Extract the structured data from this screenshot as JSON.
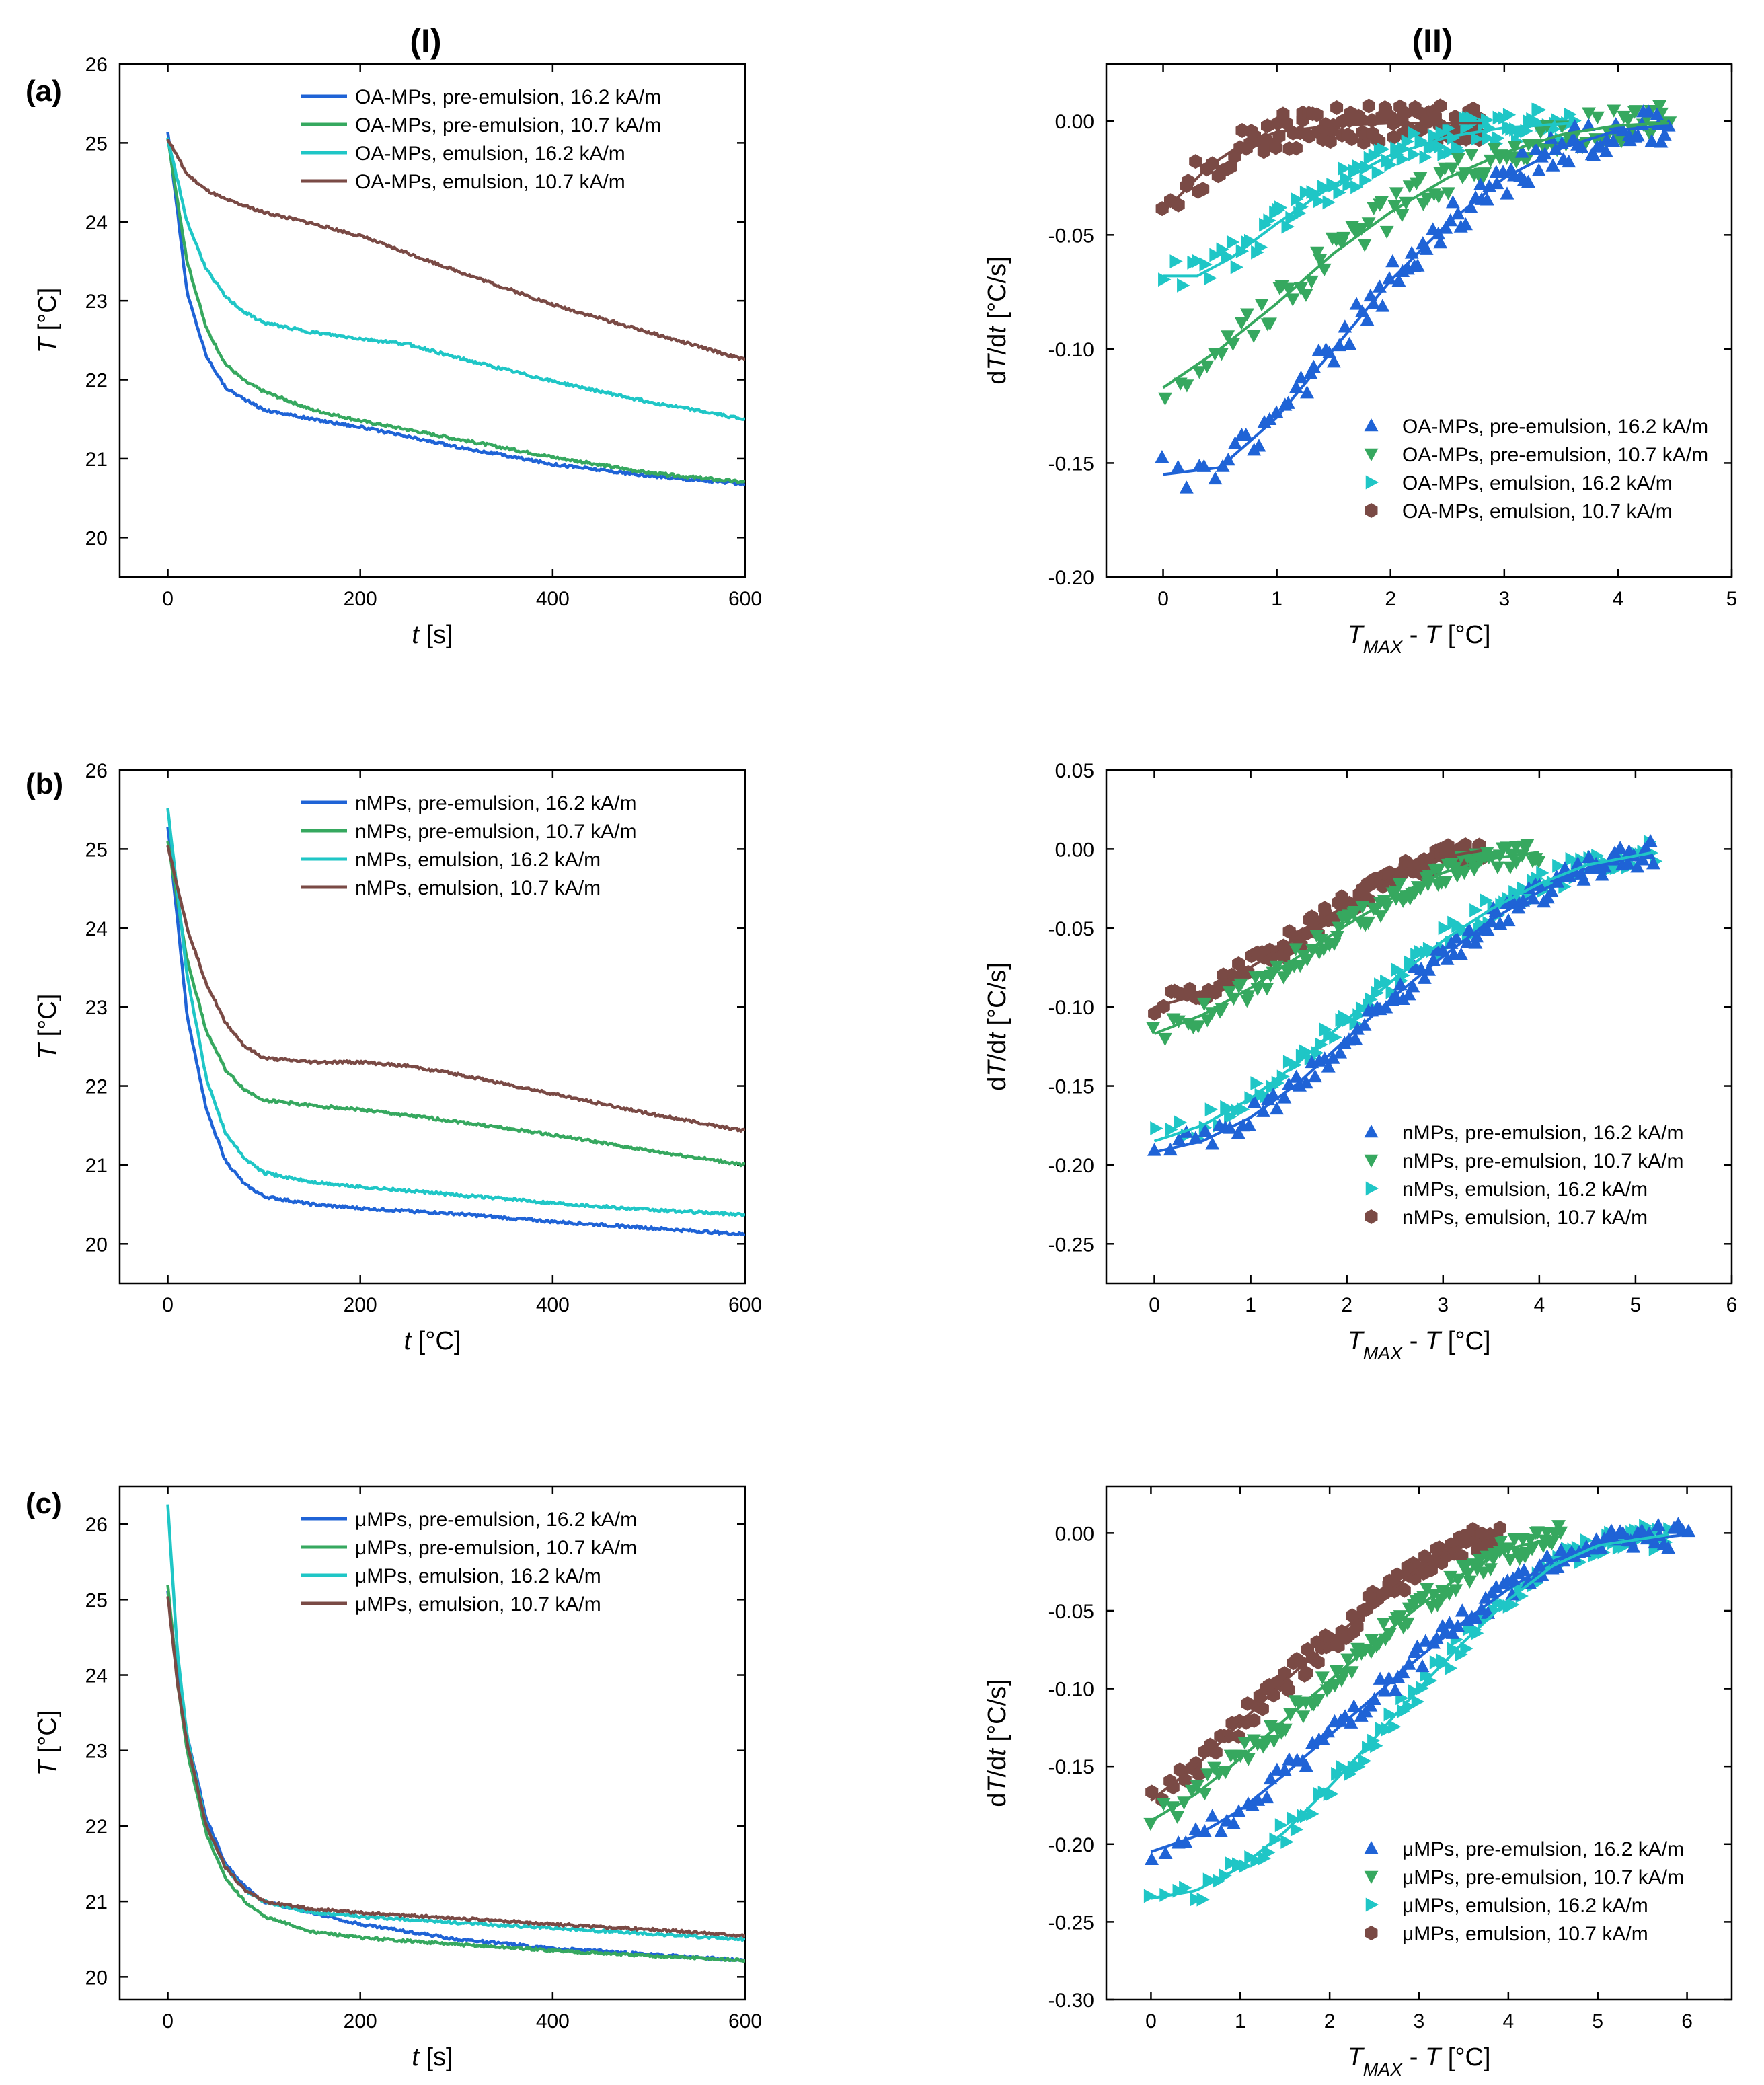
{
  "figure": {
    "column_labels": [
      "(I)",
      "(II)"
    ],
    "row_labels": [
      "(a)",
      "(b)",
      "(c)"
    ],
    "colors": {
      "blue": "#1f63d6",
      "green": "#36a85f",
      "cyan": "#1fc6c6",
      "brown": "#7a4a45"
    },
    "symbols": {
      "blue": "triangle-up",
      "green": "triangle-down",
      "cyan": "triangle-right",
      "brown": "hexagon"
    }
  },
  "chart_data": [
    {
      "id": "a1",
      "type": "line",
      "xlabel": "t [s]",
      "ylabel": "T [°C]",
      "xlim": [
        -50,
        600
      ],
      "ylim": [
        19.5,
        26
      ],
      "xticks": [
        0,
        200,
        400,
        600
      ],
      "yticks": [
        20,
        21,
        22,
        23,
        24,
        25,
        26
      ],
      "legend_position": "top-right",
      "series": [
        {
          "name": "OA-MPs, pre-emulsion, 16.2 kA/m",
          "color": "blue",
          "x": [
            0,
            20,
            40,
            60,
            80,
            100,
            150,
            200,
            300,
            400,
            500,
            600
          ],
          "y": [
            25.15,
            23.1,
            22.3,
            21.9,
            21.75,
            21.62,
            21.5,
            21.4,
            21.15,
            20.93,
            20.78,
            20.68
          ]
        },
        {
          "name": "OA-MPs, pre-emulsion, 10.7 kA/m",
          "color": "green",
          "x": [
            0,
            20,
            40,
            60,
            80,
            100,
            150,
            200,
            300,
            400,
            500,
            600
          ],
          "y": [
            25.05,
            23.5,
            22.65,
            22.2,
            21.98,
            21.85,
            21.62,
            21.48,
            21.25,
            21.02,
            20.82,
            20.7
          ]
        },
        {
          "name": "OA-MPs, emulsion, 16.2 kA/m",
          "color": "cyan",
          "x": [
            0,
            20,
            40,
            60,
            80,
            100,
            150,
            200,
            250,
            300,
            400,
            500,
            600
          ],
          "y": [
            25.05,
            24.0,
            23.4,
            23.05,
            22.85,
            22.72,
            22.6,
            22.52,
            22.45,
            22.28,
            21.98,
            21.72,
            21.5
          ]
        },
        {
          "name": "OA-MPs, emulsion, 10.7 kA/m",
          "color": "brown",
          "x": [
            0,
            20,
            40,
            60,
            80,
            100,
            150,
            200,
            300,
            400,
            500,
            600
          ],
          "y": [
            25.05,
            24.6,
            24.4,
            24.28,
            24.2,
            24.12,
            23.98,
            23.82,
            23.38,
            22.95,
            22.6,
            22.25
          ]
        }
      ]
    },
    {
      "id": "a2",
      "type": "scatter",
      "xlabel": "T_MAX - T [°C]",
      "ylabel": "dT/dt [°C/s]",
      "xlim": [
        -0.5,
        5
      ],
      "ylim": [
        -0.2,
        0.025
      ],
      "xticks": [
        0,
        1,
        2,
        3,
        4,
        5
      ],
      "yticks": [
        0.0,
        -0.05,
        -0.1,
        -0.15,
        -0.2
      ],
      "legend_position": "bottom-right",
      "series": [
        {
          "name": "OA-MPs, pre-emulsion, 16.2 kA/m",
          "color": "blue",
          "marker": "triangle-up",
          "fit_x": [
            0,
            0.5,
            1.0,
            1.5,
            2.0,
            2.5,
            3.0,
            3.5,
            4.0,
            4.45
          ],
          "fit_y": [
            -0.155,
            -0.152,
            -0.13,
            -0.1,
            -0.07,
            -0.045,
            -0.025,
            -0.012,
            -0.004,
            -0.002
          ],
          "scatter_range": [
            0,
            4.45
          ],
          "noise": 0.008
        },
        {
          "name": "OA-MPs, pre-emulsion, 10.7 kA/m",
          "color": "green",
          "marker": "triangle-down",
          "fit_x": [
            0,
            0.5,
            1.0,
            1.5,
            2.0,
            2.5,
            3.0,
            3.5,
            4.0,
            4.45
          ],
          "fit_y": [
            -0.117,
            -0.1,
            -0.08,
            -0.058,
            -0.04,
            -0.025,
            -0.014,
            -0.006,
            -0.002,
            -0.001
          ],
          "scatter_range": [
            0,
            4.45
          ],
          "noise": 0.008
        },
        {
          "name": "OA-MPs, emulsion, 16.2 kA/m",
          "color": "cyan",
          "marker": "triangle-right",
          "fit_x": [
            0,
            0.3,
            0.6,
            1.0,
            1.5,
            2.0,
            2.5,
            3.0,
            3.6
          ],
          "fit_y": [
            -0.068,
            -0.068,
            -0.06,
            -0.045,
            -0.028,
            -0.015,
            -0.007,
            -0.003,
            -0.001
          ],
          "scatter_range": [
            0,
            3.6
          ],
          "noise": 0.007
        },
        {
          "name": "OA-MPs, emulsion, 10.7 kA/m",
          "color": "brown",
          "marker": "hexagon",
          "fit_x": [
            0,
            0.2,
            0.4,
            0.7,
            1.0,
            1.5,
            2.0,
            2.8
          ],
          "fit_y": [
            -0.04,
            -0.03,
            -0.02,
            -0.01,
            -0.005,
            -0.002,
            -0.001,
            -0.001
          ],
          "scatter_range": [
            0,
            2.8
          ],
          "noise": 0.008
        }
      ]
    },
    {
      "id": "b1",
      "type": "line",
      "xlabel": "t [°C]",
      "ylabel": "T [°C]",
      "xlim": [
        -50,
        600
      ],
      "ylim": [
        19.5,
        26
      ],
      "xticks": [
        0,
        200,
        400,
        600
      ],
      "yticks": [
        20,
        21,
        22,
        23,
        24,
        25,
        26
      ],
      "legend_position": "top-right",
      "series": [
        {
          "name": "nMPs, pre-emulsion, 16.2 kA/m",
          "color": "blue",
          "x": [
            0,
            20,
            40,
            60,
            80,
            100,
            150,
            200,
            300,
            400,
            500,
            600
          ],
          "y": [
            25.3,
            22.9,
            21.7,
            21.05,
            20.75,
            20.6,
            20.5,
            20.45,
            20.38,
            20.28,
            20.2,
            20.12
          ]
        },
        {
          "name": "nMPs, pre-emulsion, 10.7 kA/m",
          "color": "green",
          "x": [
            0,
            20,
            40,
            60,
            80,
            100,
            150,
            200,
            300,
            400,
            500,
            600
          ],
          "y": [
            25.1,
            23.6,
            22.7,
            22.2,
            21.95,
            21.82,
            21.75,
            21.7,
            21.55,
            21.38,
            21.18,
            21.0
          ]
        },
        {
          "name": "nMPs, emulsion, 16.2 kA/m",
          "color": "cyan",
          "x": [
            0,
            20,
            40,
            60,
            80,
            100,
            150,
            200,
            300,
            400,
            500,
            600
          ],
          "y": [
            25.5,
            23.4,
            22.1,
            21.4,
            21.08,
            20.9,
            20.78,
            20.72,
            20.62,
            20.52,
            20.43,
            20.37
          ]
        },
        {
          "name": "nMPs, emulsion, 10.7 kA/m",
          "color": "brown",
          "x": [
            0,
            20,
            40,
            60,
            80,
            100,
            150,
            200,
            250,
            300,
            400,
            500,
            600
          ],
          "y": [
            25.05,
            24.0,
            23.3,
            22.8,
            22.5,
            22.35,
            22.3,
            22.3,
            22.25,
            22.15,
            21.9,
            21.65,
            21.43
          ]
        }
      ]
    },
    {
      "id": "b2",
      "type": "scatter",
      "xlabel": "T_MAX - T [°C]",
      "ylabel": "dT/dt [°C/s]",
      "xlim": [
        -0.5,
        6
      ],
      "ylim": [
        -0.275,
        0.05
      ],
      "xticks": [
        0,
        1,
        2,
        3,
        4,
        5,
        6
      ],
      "yticks": [
        0.05,
        0.0,
        -0.05,
        -0.1,
        -0.15,
        -0.2,
        -0.25
      ],
      "legend_position": "bottom-right",
      "series": [
        {
          "name": "nMPs, pre-emulsion, 16.2 kA/m",
          "color": "blue",
          "marker": "triangle-up",
          "fit_x": [
            0,
            0.5,
            1.0,
            1.5,
            2.0,
            2.5,
            3.0,
            3.5,
            4.0,
            4.5,
            5.2
          ],
          "fit_y": [
            -0.192,
            -0.185,
            -0.17,
            -0.148,
            -0.12,
            -0.093,
            -0.068,
            -0.045,
            -0.027,
            -0.012,
            -0.002
          ],
          "scatter_range": [
            0,
            5.2
          ],
          "noise": 0.008
        },
        {
          "name": "nMPs, pre-emulsion, 10.7 kA/m",
          "color": "green",
          "marker": "triangle-down",
          "fit_x": [
            0,
            0.5,
            1.0,
            1.5,
            2.0,
            2.5,
            3.0,
            3.5,
            4.0
          ],
          "fit_y": [
            -0.117,
            -0.105,
            -0.088,
            -0.068,
            -0.048,
            -0.03,
            -0.015,
            -0.006,
            -0.002
          ],
          "scatter_range": [
            0,
            4.0
          ],
          "noise": 0.007
        },
        {
          "name": "nMPs, emulsion, 16.2 kA/m",
          "color": "cyan",
          "marker": "triangle-right",
          "fit_x": [
            0,
            0.5,
            1.0,
            1.5,
            2.0,
            2.5,
            3.0,
            3.5,
            4.0,
            4.5,
            5.2
          ],
          "fit_y": [
            -0.185,
            -0.175,
            -0.158,
            -0.135,
            -0.108,
            -0.082,
            -0.058,
            -0.038,
            -0.022,
            -0.01,
            -0.002
          ],
          "scatter_range": [
            0,
            5.2
          ],
          "noise": 0.008
        },
        {
          "name": "nMPs, emulsion, 10.7 kA/m",
          "color": "brown",
          "marker": "hexagon",
          "fit_x": [
            0,
            0.3,
            0.7,
            1.0,
            1.5,
            2.0,
            2.5,
            3.0,
            3.4
          ],
          "fit_y": [
            -0.1,
            -0.095,
            -0.085,
            -0.075,
            -0.055,
            -0.035,
            -0.017,
            -0.005,
            -0.001
          ],
          "scatter_range": [
            0,
            3.4
          ],
          "noise": 0.007
        }
      ]
    },
    {
      "id": "c1",
      "type": "line",
      "xlabel": "t [s]",
      "ylabel": "T [°C]",
      "xlim": [
        -50,
        600
      ],
      "ylim": [
        19.7,
        26.5
      ],
      "xticks": [
        0,
        200,
        400,
        600
      ],
      "yticks": [
        20,
        21,
        22,
        23,
        24,
        25,
        26
      ],
      "legend_position": "top-right",
      "series": [
        {
          "name": "μMPs, pre-emulsion, 16.2 kA/m",
          "color": "blue",
          "x": [
            0,
            10,
            20,
            40,
            60,
            80,
            100,
            150,
            200,
            300,
            400,
            500,
            600
          ],
          "y": [
            25.1,
            24.0,
            23.2,
            22.1,
            21.5,
            21.2,
            21.0,
            20.85,
            20.7,
            20.5,
            20.38,
            20.3,
            20.22
          ]
        },
        {
          "name": "μMPs, pre-emulsion, 10.7 kA/m",
          "color": "green",
          "x": [
            0,
            10,
            20,
            40,
            60,
            80,
            100,
            150,
            200,
            300,
            400,
            500,
            600
          ],
          "y": [
            25.2,
            23.9,
            23.0,
            21.9,
            21.3,
            21.0,
            20.8,
            20.6,
            20.52,
            20.43,
            20.35,
            20.28,
            20.22
          ]
        },
        {
          "name": "μMPs, emulsion, 16.2 kA/m",
          "color": "cyan",
          "x": [
            0,
            10,
            20,
            40,
            60,
            80,
            100,
            150,
            200,
            300,
            400,
            500,
            600
          ],
          "y": [
            26.25,
            24.3,
            23.2,
            22.0,
            21.45,
            21.15,
            21.0,
            20.85,
            20.8,
            20.72,
            20.65,
            20.57,
            20.5
          ]
        },
        {
          "name": "μMPs, emulsion, 10.7 kA/m",
          "color": "brown",
          "x": [
            0,
            10,
            20,
            40,
            60,
            80,
            100,
            150,
            200,
            300,
            400,
            500,
            600
          ],
          "y": [
            25.05,
            23.9,
            23.1,
            22.0,
            21.45,
            21.15,
            21.0,
            20.9,
            20.85,
            20.78,
            20.7,
            20.63,
            20.55
          ]
        }
      ]
    },
    {
      "id": "c2",
      "type": "scatter",
      "xlabel": "T_MAX - T [°C]",
      "ylabel": "dT/dt [°C/s]",
      "xlim": [
        -0.5,
        6.5
      ],
      "ylim": [
        -0.3,
        0.03
      ],
      "xticks": [
        0,
        1,
        2,
        3,
        4,
        5,
        6
      ],
      "yticks": [
        0.0,
        -0.05,
        -0.1,
        -0.15,
        -0.2,
        -0.25,
        -0.3
      ],
      "legend_position": "bottom-right",
      "series": [
        {
          "name": "μMPs, pre-emulsion, 16.2 kA/m",
          "color": "blue",
          "marker": "triangle-up",
          "fit_x": [
            0,
            0.5,
            1.0,
            1.5,
            2.0,
            2.5,
            3.0,
            3.5,
            4.0,
            4.5,
            5.0,
            6.0
          ],
          "fit_y": [
            -0.205,
            -0.195,
            -0.178,
            -0.155,
            -0.13,
            -0.105,
            -0.08,
            -0.057,
            -0.036,
            -0.018,
            -0.007,
            -0.001
          ],
          "scatter_range": [
            0,
            6.0
          ],
          "noise": 0.008
        },
        {
          "name": "μMPs, pre-emulsion, 10.7 kA/m",
          "color": "green",
          "marker": "triangle-down",
          "fit_x": [
            0,
            0.5,
            1.0,
            1.5,
            2.0,
            2.5,
            3.0,
            3.5,
            4.0,
            4.6
          ],
          "fit_y": [
            -0.185,
            -0.168,
            -0.145,
            -0.12,
            -0.095,
            -0.07,
            -0.047,
            -0.026,
            -0.01,
            -0.002
          ],
          "scatter_range": [
            0,
            4.6
          ],
          "noise": 0.008
        },
        {
          "name": "μMPs, emulsion, 16.2 kA/m",
          "color": "cyan",
          "marker": "triangle-right",
          "fit_x": [
            0,
            0.5,
            1.0,
            1.5,
            2.0,
            2.5,
            3.0,
            3.5,
            4.0,
            4.5,
            5.0,
            5.8
          ],
          "fit_y": [
            -0.235,
            -0.23,
            -0.215,
            -0.192,
            -0.163,
            -0.132,
            -0.1,
            -0.07,
            -0.043,
            -0.021,
            -0.008,
            -0.001
          ],
          "scatter_range": [
            0,
            5.8
          ],
          "noise": 0.008
        },
        {
          "name": "μMPs, emulsion, 10.7 kA/m",
          "color": "brown",
          "marker": "hexagon",
          "fit_x": [
            0,
            0.5,
            1.0,
            1.5,
            2.0,
            2.5,
            3.0,
            3.5,
            3.9
          ],
          "fit_y": [
            -0.172,
            -0.15,
            -0.122,
            -0.095,
            -0.07,
            -0.045,
            -0.023,
            -0.007,
            -0.001
          ],
          "scatter_range": [
            0,
            3.9
          ],
          "noise": 0.008
        }
      ]
    }
  ]
}
